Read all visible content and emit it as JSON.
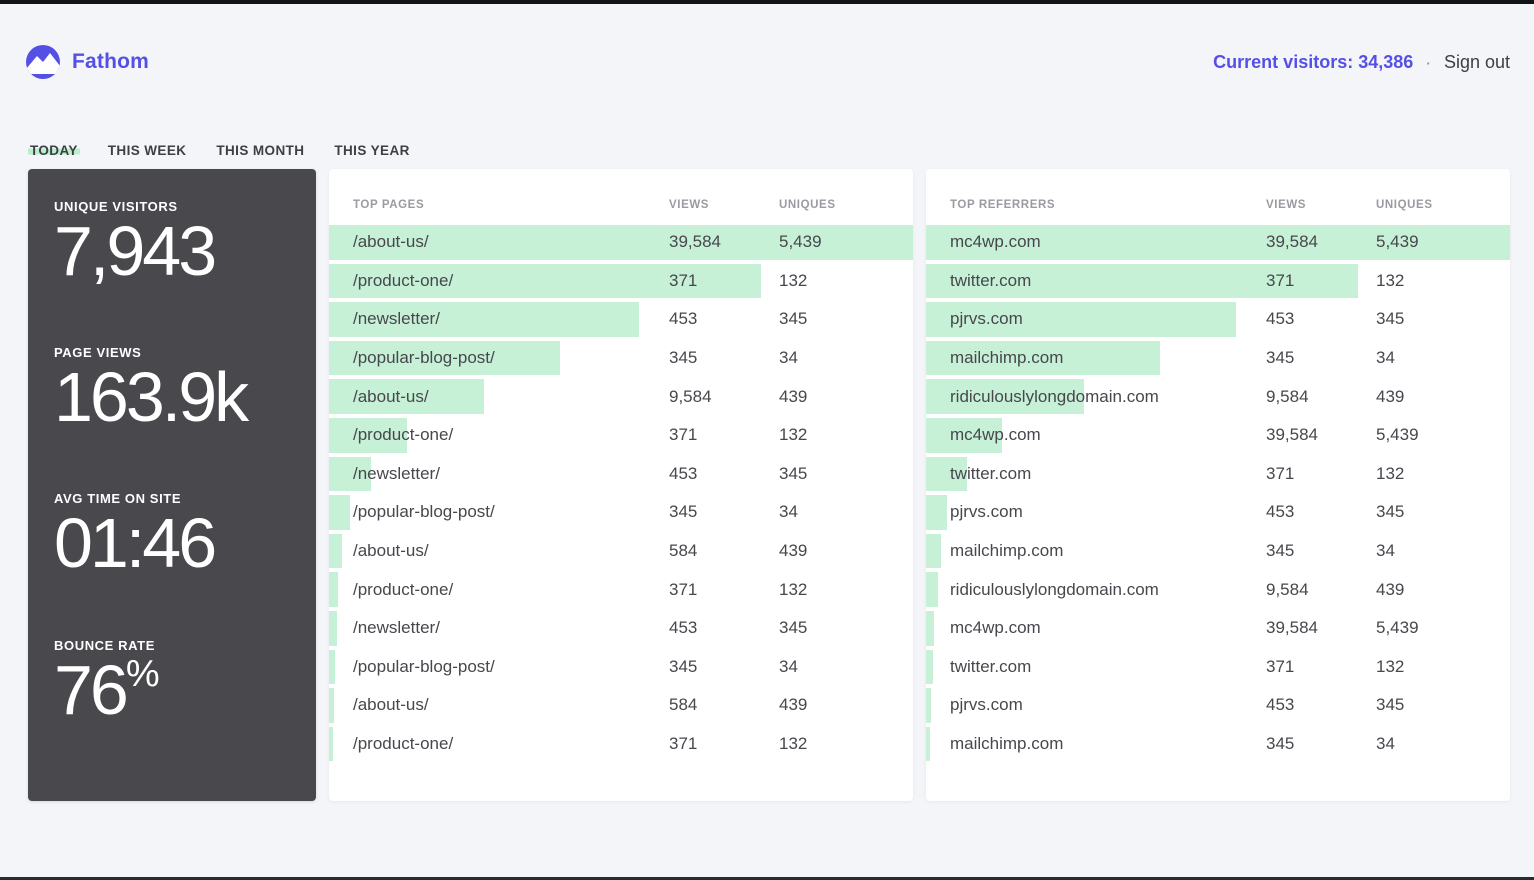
{
  "header": {
    "brand": "Fathom",
    "current_visitors": "Current visitors: 34,386",
    "separator": "·",
    "sign_out": "Sign out"
  },
  "tabs": [
    {
      "label": "TODAY",
      "active": true
    },
    {
      "label": "THIS WEEK",
      "active": false
    },
    {
      "label": "THIS MONTH",
      "active": false
    },
    {
      "label": "THIS YEAR",
      "active": false
    }
  ],
  "stats": [
    {
      "label": "UNIQUE VISITORS",
      "value": "7,943",
      "suffix": ""
    },
    {
      "label": "PAGE VIEWS",
      "value": "163.9k",
      "suffix": ""
    },
    {
      "label": "AVG TIME ON SITE",
      "value": "01:46",
      "suffix": ""
    },
    {
      "label": "BOUNCE RATE",
      "value": "76",
      "suffix": "%"
    }
  ],
  "tables": {
    "pages": {
      "title": "TOP PAGES",
      "col_views": "VIEWS",
      "col_uniques": "UNIQUES",
      "rows": [
        {
          "label": "/about-us/",
          "views": "39,584",
          "uniques": "5,439",
          "bar_pct": 100
        },
        {
          "label": "/product-one/",
          "views": "371",
          "uniques": "132",
          "bar_pct": 74
        },
        {
          "label": "/newsletter/",
          "views": "453",
          "uniques": "345",
          "bar_pct": 53
        },
        {
          "label": "/popular-blog-post/",
          "views": "345",
          "uniques": "34",
          "bar_pct": 39.5
        },
        {
          "label": "/about-us/",
          "views": "9,584",
          "uniques": "439",
          "bar_pct": 26.5
        },
        {
          "label": "/product-one/",
          "views": "371",
          "uniques": "132",
          "bar_pct": 13.4
        },
        {
          "label": "/newsletter/",
          "views": "453",
          "uniques": "345",
          "bar_pct": 7.2
        },
        {
          "label": "/popular-blog-post/",
          "views": "345",
          "uniques": "34",
          "bar_pct": 3.6
        },
        {
          "label": "/about-us/",
          "views": "584",
          "uniques": "439",
          "bar_pct": 2.3
        },
        {
          "label": "/product-one/",
          "views": "371",
          "uniques": "132",
          "bar_pct": 1.6
        },
        {
          "label": "/newsletter/",
          "views": "453",
          "uniques": "345",
          "bar_pct": 1.3
        },
        {
          "label": "/popular-blog-post/",
          "views": "345",
          "uniques": "34",
          "bar_pct": 1.1
        },
        {
          "label": "/about-us/",
          "views": "584",
          "uniques": "439",
          "bar_pct": 0.9
        },
        {
          "label": "/product-one/",
          "views": "371",
          "uniques": "132",
          "bar_pct": 0.6
        }
      ]
    },
    "referrers": {
      "title": "TOP REFERRERS",
      "col_views": "VIEWS",
      "col_uniques": "UNIQUES",
      "rows": [
        {
          "label": "mc4wp.com",
          "views": "39,584",
          "uniques": "5,439",
          "bar_pct": 100
        },
        {
          "label": "twitter.com",
          "views": "371",
          "uniques": "132",
          "bar_pct": 74
        },
        {
          "label": "pjrvs.com",
          "views": "453",
          "uniques": "345",
          "bar_pct": 53
        },
        {
          "label": "mailchimp.com",
          "views": "345",
          "uniques": "34",
          "bar_pct": 40
        },
        {
          "label": "ridiculouslylongdomain.com",
          "views": "9,584",
          "uniques": "439",
          "bar_pct": 27
        },
        {
          "label": "mc4wp.com",
          "views": "39,584",
          "uniques": "5,439",
          "bar_pct": 13
        },
        {
          "label": "twitter.com",
          "views": "371",
          "uniques": "132",
          "bar_pct": 7
        },
        {
          "label": "pjrvs.com",
          "views": "453",
          "uniques": "345",
          "bar_pct": 3.6
        },
        {
          "label": "mailchimp.com",
          "views": "345",
          "uniques": "34",
          "bar_pct": 2.6
        },
        {
          "label": "ridiculouslylongdomain.com",
          "views": "9,584",
          "uniques": "439",
          "bar_pct": 2
        },
        {
          "label": "mc4wp.com",
          "views": "39,584",
          "uniques": "5,439",
          "bar_pct": 1.4
        },
        {
          "label": "twitter.com",
          "views": "371",
          "uniques": "132",
          "bar_pct": 1.2
        },
        {
          "label": "pjrvs.com",
          "views": "453",
          "uniques": "345",
          "bar_pct": 0.9
        },
        {
          "label": "mailchimp.com",
          "views": "345",
          "uniques": "34",
          "bar_pct": 0.6
        }
      ]
    }
  },
  "icons": {
    "logo": "mountain-in-circle-icon"
  },
  "colors": {
    "accent": "#5550e5",
    "bar_green": "#c6f1d6",
    "tab_green": "#b9efcd",
    "card_dark": "#48484d",
    "page_bg": "#f4f5f8",
    "card_bg": "#ffffff",
    "text_dark": "#3e3e44",
    "text_cell": "#47474d",
    "text_muted": "#9a9aa0",
    "edge": "#141417"
  }
}
